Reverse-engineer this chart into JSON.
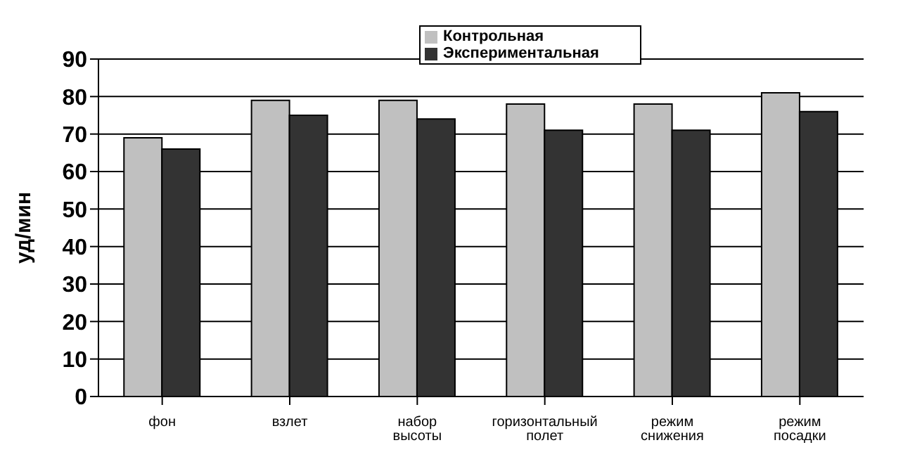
{
  "chart_data": {
    "type": "bar",
    "ylabel": "уд/мин",
    "categories": [
      "фон",
      "взлет",
      "набор высоты",
      "горизонтальный полет",
      "режим снижения",
      "режим посадки"
    ],
    "series": [
      {
        "name": "Контрольная",
        "color": "#c0c0c0",
        "values": [
          69,
          79,
          79,
          78,
          78,
          81
        ]
      },
      {
        "name": "Экспериментальная",
        "color": "#333333",
        "values": [
          66,
          75,
          74,
          71,
          71,
          76
        ]
      }
    ],
    "ylim": [
      0,
      90
    ],
    "yticks": [
      0,
      10,
      20,
      30,
      40,
      50,
      60,
      70,
      80,
      90
    ],
    "grid": "y",
    "legend": "top"
  }
}
